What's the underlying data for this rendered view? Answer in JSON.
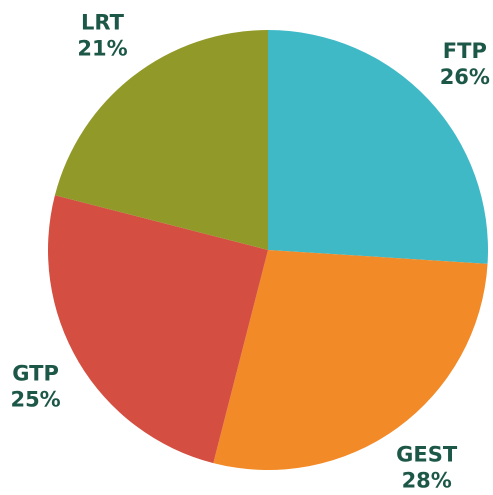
{
  "chart_data": {
    "type": "pie",
    "categories": [
      "FTP",
      "GEST",
      "GTP",
      "LRT"
    ],
    "values": [
      26,
      28,
      25,
      21
    ],
    "value_labels": [
      "26%",
      "28%",
      "25%",
      "21%"
    ],
    "colors": [
      "#40b9c7",
      "#f28a27",
      "#d44e41",
      "#919a28"
    ]
  }
}
